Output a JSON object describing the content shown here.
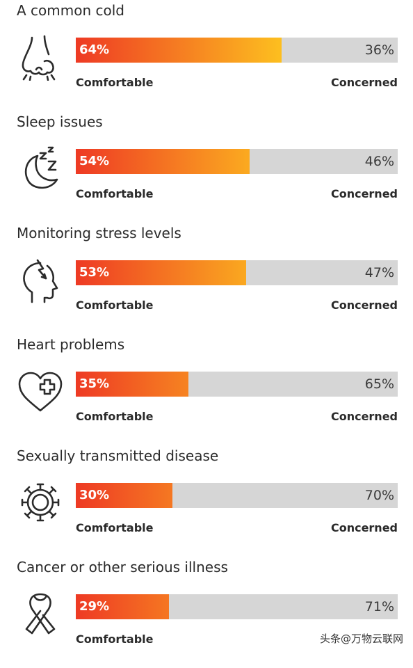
{
  "chart_data": {
    "type": "bar",
    "categories": [
      "A common cold",
      "Sleep issues",
      "Monitoring stress levels",
      "Heart problems",
      "Sexually transmitted disease",
      "Cancer or other serious illness"
    ],
    "series": [
      {
        "name": "Comfortable",
        "values": [
          64,
          54,
          53,
          35,
          30,
          29
        ]
      },
      {
        "name": "Concerned",
        "values": [
          36,
          46,
          47,
          65,
          70,
          71
        ]
      }
    ],
    "ylim": [
      0,
      100
    ],
    "orientation": "horizontal-stacked",
    "grid": false
  },
  "rows": [
    {
      "title": "A common cold",
      "icon": "nose-icon",
      "left_pct": "64%",
      "right_pct": "36%",
      "left_value": 64,
      "left_label": "Comfortable",
      "right_label": "Concerned"
    },
    {
      "title": "Sleep issues",
      "icon": "moon-sleep-icon",
      "left_pct": "54%",
      "right_pct": "46%",
      "left_value": 54,
      "left_label": "Comfortable",
      "right_label": "Concerned"
    },
    {
      "title": "Monitoring stress levels",
      "icon": "stressed-head-icon",
      "left_pct": "53%",
      "right_pct": "47%",
      "left_value": 53,
      "left_label": "Comfortable",
      "right_label": "Concerned"
    },
    {
      "title": "Heart problems",
      "icon": "heart-cross-icon",
      "left_pct": "35%",
      "right_pct": "65%",
      "left_value": 35,
      "left_label": "Comfortable",
      "right_label": "Concerned"
    },
    {
      "title": "Sexually transmitted disease",
      "icon": "virus-icon",
      "left_pct": "30%",
      "right_pct": "70%",
      "left_value": 30,
      "left_label": "Comfortable",
      "right_label": "Concerned"
    },
    {
      "title": "Cancer or other serious illness",
      "icon": "awareness-ribbon-icon",
      "left_pct": "29%",
      "right_pct": "71%",
      "left_value": 29,
      "left_label": "Comfortable",
      "right_label": ""
    }
  ],
  "colors": {
    "gradient_start": "#ee3a24",
    "gradient_end": "#fdbf1f",
    "track": "#d6d6d6",
    "icon_stroke": "#2b2b2b"
  },
  "watermark": "头条@万物云联网"
}
